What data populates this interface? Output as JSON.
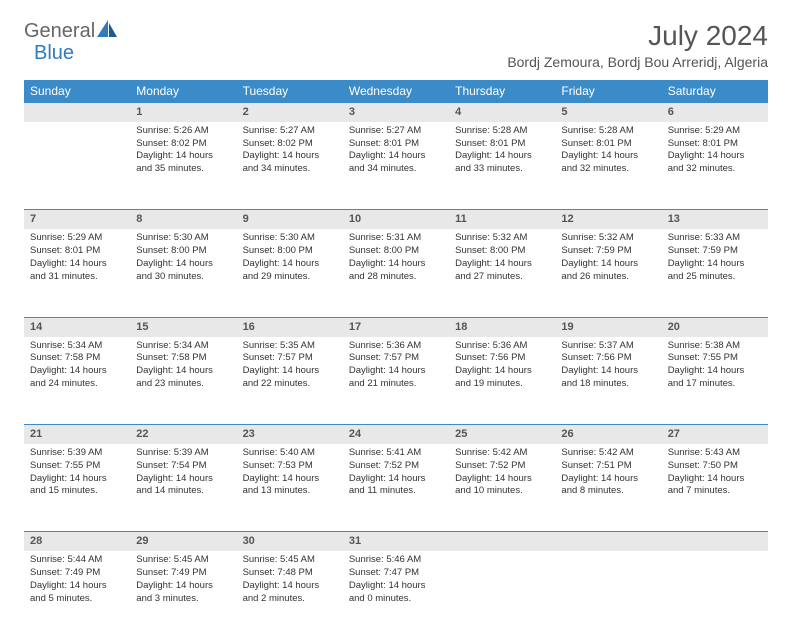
{
  "logo": {
    "text1": "General",
    "text2": "Blue"
  },
  "title": "July 2024",
  "location": "Bordj Zemoura, Bordj Bou Arreridj, Algeria",
  "colors": {
    "header_bg": "#3b8bc9",
    "header_fg": "#ffffff",
    "daynum_bg": "#e8e8e8",
    "border": "#3b8bc9",
    "logo_gray": "#666666",
    "logo_blue": "#2f7bbf"
  },
  "day_headers": [
    "Sunday",
    "Monday",
    "Tuesday",
    "Wednesday",
    "Thursday",
    "Friday",
    "Saturday"
  ],
  "weeks": [
    {
      "nums": [
        "",
        "1",
        "2",
        "3",
        "4",
        "5",
        "6"
      ],
      "cells": [
        [],
        [
          "Sunrise: 5:26 AM",
          "Sunset: 8:02 PM",
          "Daylight: 14 hours",
          "and 35 minutes."
        ],
        [
          "Sunrise: 5:27 AM",
          "Sunset: 8:02 PM",
          "Daylight: 14 hours",
          "and 34 minutes."
        ],
        [
          "Sunrise: 5:27 AM",
          "Sunset: 8:01 PM",
          "Daylight: 14 hours",
          "and 34 minutes."
        ],
        [
          "Sunrise: 5:28 AM",
          "Sunset: 8:01 PM",
          "Daylight: 14 hours",
          "and 33 minutes."
        ],
        [
          "Sunrise: 5:28 AM",
          "Sunset: 8:01 PM",
          "Daylight: 14 hours",
          "and 32 minutes."
        ],
        [
          "Sunrise: 5:29 AM",
          "Sunset: 8:01 PM",
          "Daylight: 14 hours",
          "and 32 minutes."
        ]
      ]
    },
    {
      "nums": [
        "7",
        "8",
        "9",
        "10",
        "11",
        "12",
        "13"
      ],
      "cells": [
        [
          "Sunrise: 5:29 AM",
          "Sunset: 8:01 PM",
          "Daylight: 14 hours",
          "and 31 minutes."
        ],
        [
          "Sunrise: 5:30 AM",
          "Sunset: 8:00 PM",
          "Daylight: 14 hours",
          "and 30 minutes."
        ],
        [
          "Sunrise: 5:30 AM",
          "Sunset: 8:00 PM",
          "Daylight: 14 hours",
          "and 29 minutes."
        ],
        [
          "Sunrise: 5:31 AM",
          "Sunset: 8:00 PM",
          "Daylight: 14 hours",
          "and 28 minutes."
        ],
        [
          "Sunrise: 5:32 AM",
          "Sunset: 8:00 PM",
          "Daylight: 14 hours",
          "and 27 minutes."
        ],
        [
          "Sunrise: 5:32 AM",
          "Sunset: 7:59 PM",
          "Daylight: 14 hours",
          "and 26 minutes."
        ],
        [
          "Sunrise: 5:33 AM",
          "Sunset: 7:59 PM",
          "Daylight: 14 hours",
          "and 25 minutes."
        ]
      ]
    },
    {
      "nums": [
        "14",
        "15",
        "16",
        "17",
        "18",
        "19",
        "20"
      ],
      "cells": [
        [
          "Sunrise: 5:34 AM",
          "Sunset: 7:58 PM",
          "Daylight: 14 hours",
          "and 24 minutes."
        ],
        [
          "Sunrise: 5:34 AM",
          "Sunset: 7:58 PM",
          "Daylight: 14 hours",
          "and 23 minutes."
        ],
        [
          "Sunrise: 5:35 AM",
          "Sunset: 7:57 PM",
          "Daylight: 14 hours",
          "and 22 minutes."
        ],
        [
          "Sunrise: 5:36 AM",
          "Sunset: 7:57 PM",
          "Daylight: 14 hours",
          "and 21 minutes."
        ],
        [
          "Sunrise: 5:36 AM",
          "Sunset: 7:56 PM",
          "Daylight: 14 hours",
          "and 19 minutes."
        ],
        [
          "Sunrise: 5:37 AM",
          "Sunset: 7:56 PM",
          "Daylight: 14 hours",
          "and 18 minutes."
        ],
        [
          "Sunrise: 5:38 AM",
          "Sunset: 7:55 PM",
          "Daylight: 14 hours",
          "and 17 minutes."
        ]
      ]
    },
    {
      "nums": [
        "21",
        "22",
        "23",
        "24",
        "25",
        "26",
        "27"
      ],
      "cells": [
        [
          "Sunrise: 5:39 AM",
          "Sunset: 7:55 PM",
          "Daylight: 14 hours",
          "and 15 minutes."
        ],
        [
          "Sunrise: 5:39 AM",
          "Sunset: 7:54 PM",
          "Daylight: 14 hours",
          "and 14 minutes."
        ],
        [
          "Sunrise: 5:40 AM",
          "Sunset: 7:53 PM",
          "Daylight: 14 hours",
          "and 13 minutes."
        ],
        [
          "Sunrise: 5:41 AM",
          "Sunset: 7:52 PM",
          "Daylight: 14 hours",
          "and 11 minutes."
        ],
        [
          "Sunrise: 5:42 AM",
          "Sunset: 7:52 PM",
          "Daylight: 14 hours",
          "and 10 minutes."
        ],
        [
          "Sunrise: 5:42 AM",
          "Sunset: 7:51 PM",
          "Daylight: 14 hours",
          "and 8 minutes."
        ],
        [
          "Sunrise: 5:43 AM",
          "Sunset: 7:50 PM",
          "Daylight: 14 hours",
          "and 7 minutes."
        ]
      ]
    },
    {
      "nums": [
        "28",
        "29",
        "30",
        "31",
        "",
        "",
        ""
      ],
      "cells": [
        [
          "Sunrise: 5:44 AM",
          "Sunset: 7:49 PM",
          "Daylight: 14 hours",
          "and 5 minutes."
        ],
        [
          "Sunrise: 5:45 AM",
          "Sunset: 7:49 PM",
          "Daylight: 14 hours",
          "and 3 minutes."
        ],
        [
          "Sunrise: 5:45 AM",
          "Sunset: 7:48 PM",
          "Daylight: 14 hours",
          "and 2 minutes."
        ],
        [
          "Sunrise: 5:46 AM",
          "Sunset: 7:47 PM",
          "Daylight: 14 hours",
          "and 0 minutes."
        ],
        [],
        [],
        []
      ]
    }
  ]
}
